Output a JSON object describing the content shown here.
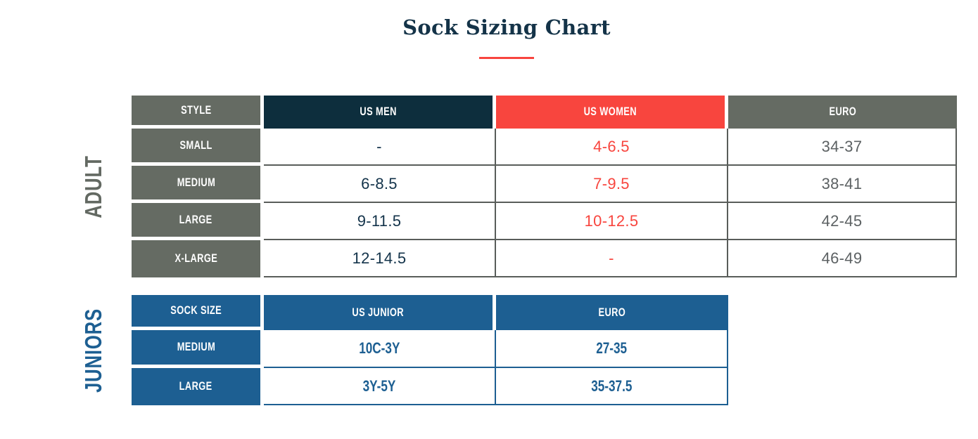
{
  "page_title": "Sock Sizing Chart",
  "accent_colors": {
    "title_navy": "#143348",
    "header_navy": "#0d2e3d",
    "header_red": "#f8453e",
    "header_gray": "#656b63",
    "juniors_blue": "#1d5f92",
    "divider_red": "#f8453e"
  },
  "chart_data": [
    {
      "type": "table",
      "section_label": "ADULT",
      "columns": [
        "STYLE",
        "US MEN",
        "US WOMEN",
        "EURO"
      ],
      "rows": [
        [
          "SMALL",
          "-",
          "4-6.5",
          "34-37"
        ],
        [
          "MEDIUM",
          "6-8.5",
          "7-9.5",
          "38-41"
        ],
        [
          "LARGE",
          "9-11.5",
          "10-12.5",
          "42-45"
        ],
        [
          "X-LARGE",
          "12-14.5",
          "-",
          "46-49"
        ]
      ]
    },
    {
      "type": "table",
      "section_label": "JUNIORS",
      "columns": [
        "SOCK SIZE",
        "US JUNIOR",
        "EURO"
      ],
      "rows": [
        [
          "MEDIUM",
          "10C-3Y",
          "27-35"
        ],
        [
          "LARGE",
          "3Y-5Y",
          "35-37.5"
        ]
      ]
    }
  ]
}
